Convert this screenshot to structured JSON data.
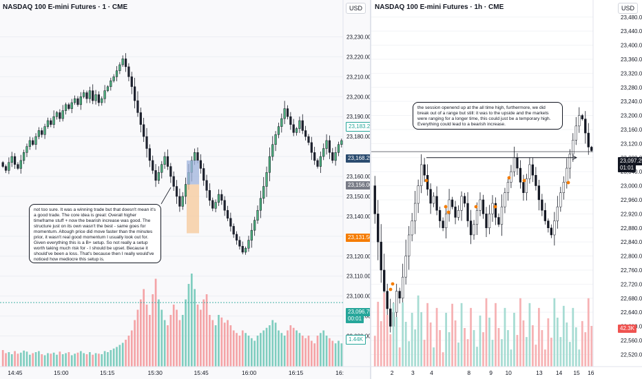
{
  "left": {
    "title": "NASDAQ 100 E-mini Futures · 1 · CME",
    "currency": "USD",
    "annotation": "not too sure. It was a winning trade but that doesn't mean it's a good trade. The core idea is great: Overall higher timeframe stuff + now the bearish increase was good. The structure just on its own wasn't the best - same goes for momentum. Altough price did move faster than the minutes prior, it wasn't real good momentum I usually look out for.\nGiven everything this is a B+ setup. So not really a setup worth taking much risk for - I should be upset. Because it should've been a loss. That's because then I really would've noticed how mediocre this setup is.",
    "price_labels": {
      "p1": "23,183.25",
      "p2": "23,168.25",
      "p3": "23,156.00",
      "p4": "23,131.50",
      "p5_price": "23,096.75",
      "p5_time": "00:01",
      "vol": "1.44K"
    }
  },
  "right": {
    "title": "NASDAQ 100 E-mini Futures · 1h · CME",
    "currency": "USD",
    "annotation": "the session openend up at the all time high, furthermore, we did break out of a range but still: it was to the upside and the markets were ranging for a longer time, this could just be a temporary high. Everything could lead to a bearish increase.",
    "price_labels": {
      "price": "23,097.25",
      "time": "01:01",
      "vol": "42.3K"
    }
  },
  "chart_data": [
    {
      "type": "candlestick",
      "title": "NASDAQ 100 E-mini Futures · 1 · CME",
      "x_ticks": [
        "14:45",
        "15:00",
        "15:15",
        "15:30",
        "15:45",
        "16:00",
        "16:15",
        "16:"
      ],
      "y_ticks": [
        "23,230.00",
        "23,220.00",
        "23,210.00",
        "23,200.00",
        "23,190.00",
        "23,180.00",
        "23,170.00",
        "23,160.00",
        "23,150.00",
        "23,140.00",
        "23,130.00",
        "23,120.00",
        "23,110.00",
        "23,100.00",
        "23,090.00",
        "23,080.00"
      ],
      "ylim": [
        23075,
        23235
      ],
      "close": [
        23165,
        23163,
        23167,
        23170,
        23166,
        23164,
        23168,
        23172,
        23175,
        23178,
        23176,
        23180,
        23183,
        23181,
        23185,
        23188,
        23186,
        23190,
        23192,
        23189,
        23193,
        23196,
        23194,
        23197,
        23199,
        23196,
        23200,
        23202,
        23199,
        23203,
        23198,
        23201,
        23197,
        23199,
        23203,
        23205,
        23208,
        23210,
        23213,
        23216,
        23219,
        23215,
        23210,
        23205,
        23198,
        23192,
        23186,
        23180,
        23174,
        23168,
        23163,
        23158,
        23162,
        23166,
        23170,
        23165,
        23160,
        23155,
        23150,
        23145,
        23150,
        23156,
        23162,
        23168,
        23172,
        23168,
        23164,
        23158,
        23153,
        23148,
        23144,
        23147,
        23151,
        23148,
        23143,
        23139,
        23135,
        23131,
        23128,
        23125,
        23122,
        23124,
        23128,
        23133,
        23138,
        23143,
        23149,
        23155,
        23162,
        23170,
        23176,
        23181,
        23185,
        23189,
        23194,
        23190,
        23186,
        23182,
        23184,
        23188,
        23183,
        23180,
        23177,
        23172,
        23168,
        23165,
        23170,
        23174,
        23178,
        23172,
        23168,
        23172,
        23176,
        23178
      ],
      "volume": [
        320,
        260,
        280,
        240,
        300,
        250,
        270,
        310,
        290,
        230,
        260,
        280,
        300,
        240,
        220,
        260,
        250,
        270,
        230,
        290,
        240,
        260,
        280,
        220,
        250,
        270,
        300,
        260,
        240,
        280,
        230,
        260,
        250,
        240,
        300,
        280,
        320,
        350,
        380,
        420,
        460,
        520,
        600,
        700,
        900,
        1100,
        1300,
        1500,
        1200,
        1000,
        1400,
        1700,
        1300,
        1100,
        900,
        800,
        1000,
        1200,
        1100,
        900,
        1000,
        1300,
        1600,
        1800,
        1500,
        1200,
        1100,
        1300,
        1400,
        1000,
        900,
        800,
        1000,
        950,
        850,
        900,
        800,
        700,
        650,
        600,
        700,
        650,
        600,
        550,
        500,
        600,
        650,
        700,
        750,
        800,
        900,
        850,
        700,
        650,
        600,
        700,
        800,
        750,
        700,
        650,
        600,
        550,
        600,
        500,
        450,
        600,
        650,
        700,
        600,
        550,
        500,
        450,
        500,
        450
      ]
    },
    {
      "type": "candlestick",
      "title": "NASDAQ 100 E-mini Futures · 1h · CME",
      "x_ticks": [
        "2",
        "3",
        "4",
        "8",
        "9",
        "10",
        "13",
        "14",
        "15",
        "16"
      ],
      "y_ticks": [
        "23,480.00",
        "23,440.00",
        "23,400.00",
        "23,360.00",
        "23,320.00",
        "23,280.00",
        "23,240.00",
        "23,200.00",
        "23,160.00",
        "23,120.00",
        "23,080.00",
        "23,040.00",
        "23,000.00",
        "22,960.00",
        "22,920.00",
        "22,880.00",
        "22,840.00",
        "22,800.00",
        "22,760.00",
        "22,720.00",
        "22,680.00",
        "22,640.00",
        "22,600.00",
        "22,560.00",
        "22,520.00"
      ],
      "ylim": [
        22505,
        23505
      ],
      "close": [
        22920,
        22840,
        22760,
        22700,
        22650,
        22600,
        22640,
        22700,
        22680,
        22740,
        22800,
        22860,
        22900,
        22950,
        23000,
        23060,
        23030,
        22990,
        22950,
        22970,
        22930,
        22900,
        22880,
        22920,
        22960,
        22940,
        22910,
        22930,
        22970,
        22950,
        22900,
        22860,
        22890,
        22930,
        22960,
        22920,
        22880,
        22920,
        22950,
        22910,
        22890,
        22940,
        22980,
        23010,
        23040,
        23080,
        23050,
        23010,
        22980,
        23020,
        23060,
        23030,
        23000,
        22960,
        22930,
        22900,
        22880,
        22860,
        22900,
        22940,
        22980,
        23010,
        23050,
        23090,
        23130,
        23170,
        23200,
        23190,
        23150,
        23110,
        23100
      ]
    }
  ]
}
